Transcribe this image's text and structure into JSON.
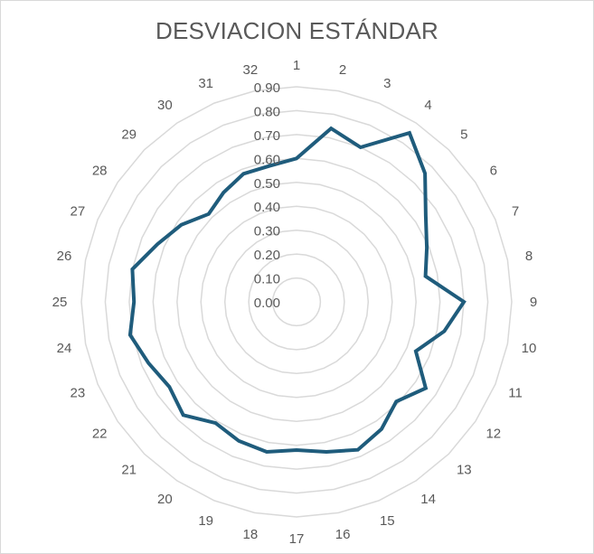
{
  "chart_data": {
    "type": "radar",
    "title": "DESVIACION ESTÁNDAR",
    "categories": [
      "1",
      "2",
      "3",
      "4",
      "5",
      "6",
      "7",
      "8",
      "9",
      "10",
      "11",
      "12",
      "13",
      "14",
      "15",
      "16",
      "17",
      "18",
      "19",
      "20",
      "21",
      "22",
      "23",
      "24",
      "25",
      "26",
      "27",
      "28",
      "29",
      "30",
      "31",
      "32"
    ],
    "radial_ticks": [
      "0.00",
      "0.10",
      "0.20",
      "0.30",
      "0.40",
      "0.50",
      "0.60",
      "0.70",
      "0.80",
      "0.90"
    ],
    "rlim": [
      0,
      0.9
    ],
    "series": [
      {
        "color": "#1f5c7c",
        "values": [
          0.6,
          0.74,
          0.7,
          0.85,
          0.76,
          0.65,
          0.59,
          0.55,
          0.7,
          0.63,
          0.54,
          0.65,
          0.59,
          0.64,
          0.67,
          0.64,
          0.62,
          0.64,
          0.63,
          0.61,
          0.67,
          0.64,
          0.67,
          0.71,
          0.68,
          0.7,
          0.63,
          0.58,
          0.52,
          0.55,
          0.58,
          0.58
        ]
      }
    ],
    "grid": true,
    "legend": "none"
  }
}
